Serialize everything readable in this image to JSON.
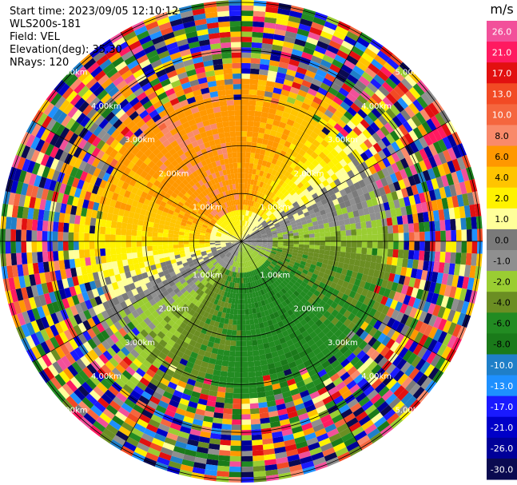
{
  "header": {
    "start_time": "Start time: 2023/09/05 12:10:12",
    "device": "WLS200s-181",
    "field": "Field: VEL",
    "elevation": "Elevation(deg): 35.30",
    "nrays": "NRays: 120"
  },
  "colorbar": {
    "unit": "m/s",
    "ticks": [
      "26.0",
      "21.0",
      "17.0",
      "13.0",
      "10.0",
      "8.0",
      "6.0",
      "4.0",
      "2.0",
      "1.0",
      "0.0",
      "-1.0",
      "-2.0",
      "-4.0",
      "-6.0",
      "-8.0",
      "-10.0",
      "-13.0",
      "-17.0",
      "-21.0",
      "-26.0",
      "-30.0"
    ],
    "colors": [
      "#f2509a",
      "#ff1a60",
      "#e21010",
      "#f24a24",
      "#f5663e",
      "#f98a6a",
      "#ff9800",
      "#ffc400",
      "#fff200",
      "#ffff9a",
      "#7a7a7a",
      "#8f8f8f",
      "#9acd32",
      "#6b8e23",
      "#228b22",
      "#1a7a1a",
      "#1f7fc8",
      "#1e90ff",
      "#1a1aff",
      "#0000c8",
      "#000099",
      "#0a0a50"
    ]
  },
  "chart_data": {
    "type": "heatmap",
    "projection": "polar-ppi",
    "field": "VEL",
    "nrays": 120,
    "unit": "m/s",
    "range_ring_labels": [
      "1.00km",
      "2.00km",
      "3.00km",
      "4.00km",
      "5.00km"
    ],
    "range_rings_km": [
      1,
      2,
      3,
      4,
      5
    ],
    "max_range_km": 5,
    "pattern": {
      "near_field": "positive velocities (yellow/orange) toward north and west, negative velocities (green) toward south and east, near zero (gray) along a band through center",
      "far_field": "noisy mixed values across the full scale"
    }
  }
}
